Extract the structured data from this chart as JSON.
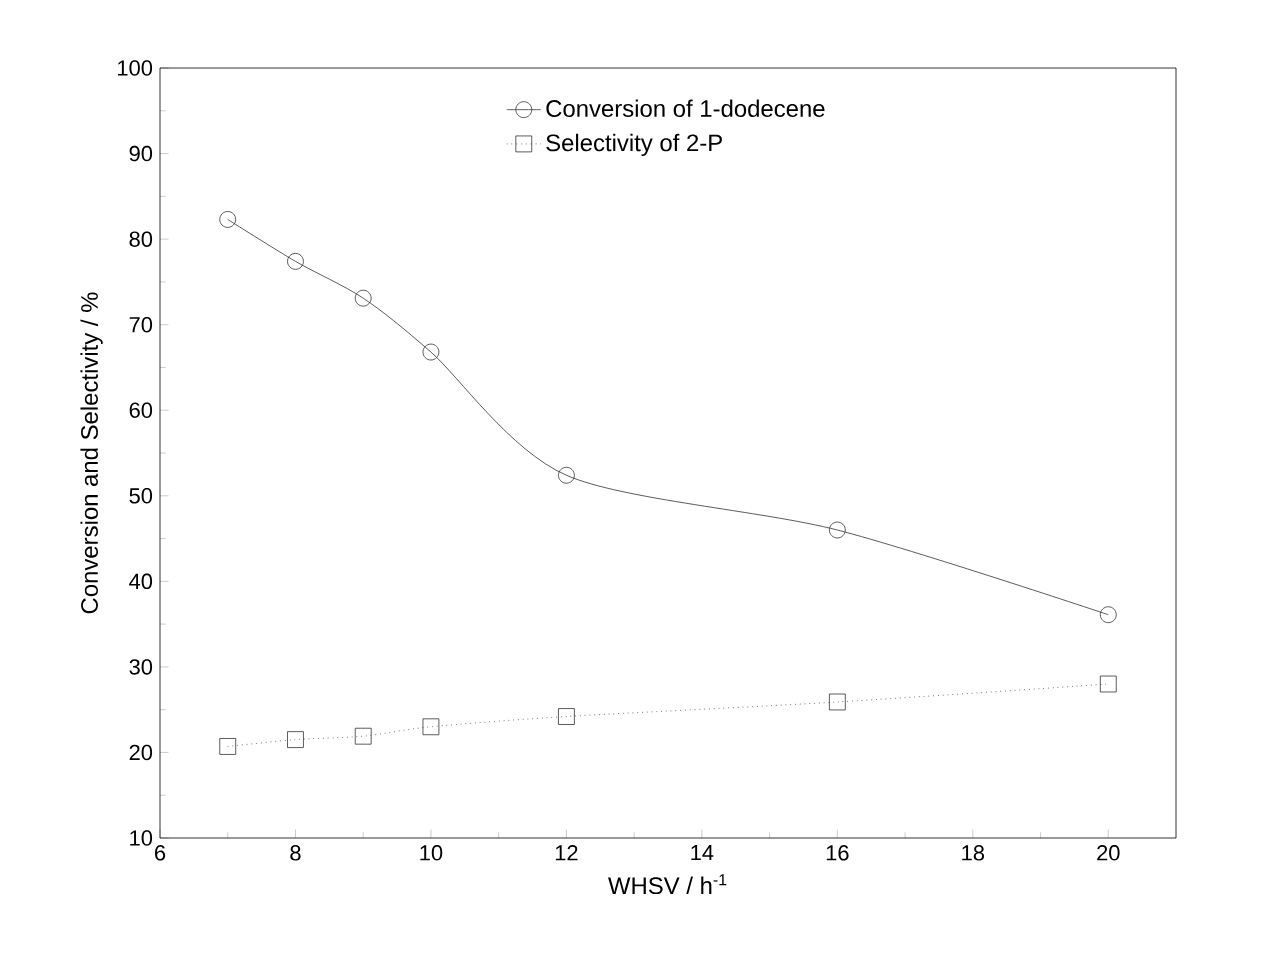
{
  "chart_data": {
    "type": "line",
    "xlabel": "WHSV / h$^{-1}$",
    "ylabel": "Conversion and Selectivity / %",
    "xlim": [
      6,
      21
    ],
    "ylim": [
      10,
      100
    ],
    "xticks": [
      6,
      8,
      10,
      12,
      14,
      16,
      18,
      20
    ],
    "yticks": [
      10,
      20,
      30,
      40,
      50,
      60,
      70,
      80,
      90,
      100
    ],
    "grid": false,
    "legend": "top",
    "series": [
      {
        "name": "Conversion of 1-dodecene",
        "color": "#333333",
        "marker": "circle",
        "line_style": "solid",
        "x": [
          7,
          8,
          9,
          10,
          12,
          16,
          20
        ],
        "values": [
          82.3,
          77.4,
          73.1,
          66.8,
          52.4,
          46.0,
          36.1
        ]
      },
      {
        "name": "Selectivity of 2-P",
        "color": "#333333",
        "marker": "square",
        "line_style": "dotted",
        "x": [
          7,
          8,
          9,
          10,
          12,
          16,
          20
        ],
        "values": [
          20.7,
          21.5,
          21.9,
          23.0,
          24.2,
          25.9,
          28.0
        ]
      }
    ]
  }
}
